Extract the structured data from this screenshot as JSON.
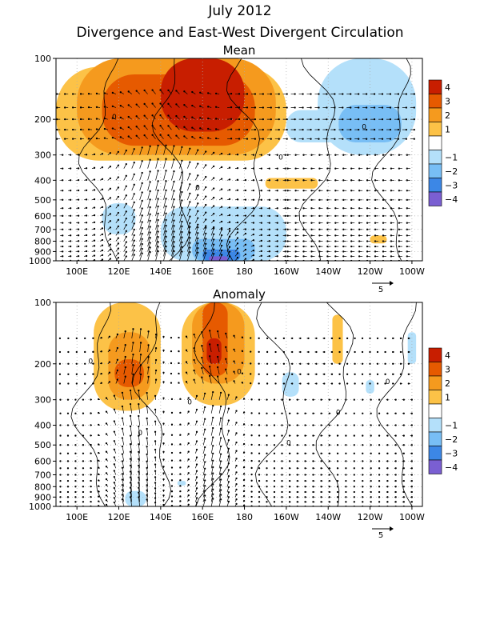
{
  "header": {
    "title": "July 2012",
    "subtitle": "Divergence and East-West Divergent Circulation"
  },
  "colors": {
    "pos4": "#c81e00",
    "pos3": "#e65a00",
    "pos2": "#f59a1e",
    "pos1": "#fcc247",
    "zero": "#ffffff",
    "neg1": "#b4e0fa",
    "neg2": "#78bef5",
    "neg3": "#3c87e6",
    "neg4": "#7a5fd2"
  },
  "chart_data": [
    {
      "type": "heatmap",
      "title": "Mean",
      "x_ticks": [
        "100E",
        "120E",
        "140E",
        "160E",
        "180",
        "160W",
        "140W",
        "120W",
        "100W"
      ],
      "x_lon": [
        100,
        120,
        140,
        160,
        180,
        200,
        220,
        240,
        260
      ],
      "xlim": [
        90,
        265
      ],
      "y_ticks": [
        100,
        200,
        300,
        400,
        500,
        600,
        700,
        800,
        900,
        1000
      ],
      "ylim": [
        1000,
        100
      ],
      "y_scale": "log-pressure",
      "colorbar": {
        "labels": [
          "4",
          "3",
          "2",
          "1",
          "−1",
          "−2",
          "−3",
          "−4"
        ]
      },
      "vector_reference": {
        "label": "5"
      },
      "contour_labels": [
        "0",
        "0",
        "0",
        "0"
      ],
      "regions": [
        {
          "level": 1,
          "lon": [
            90,
            200
          ],
          "p": [
            110,
            320
          ]
        },
        {
          "level": 2,
          "lon": [
            100,
            195
          ],
          "p": [
            100,
            300
          ]
        },
        {
          "level": 3,
          "lon": [
            112,
            185
          ],
          "p": [
            120,
            270
          ]
        },
        {
          "level": 4,
          "lon": [
            140,
            180
          ],
          "p": [
            100,
            230
          ]
        },
        {
          "level": 1,
          "lon": [
            190,
            215
          ],
          "p": [
            390,
            440
          ]
        },
        {
          "level": 1,
          "lon": [
            240,
            248
          ],
          "p": [
            750,
            820
          ]
        },
        {
          "level": -1,
          "lon": [
            200,
            230
          ],
          "p": [
            180,
            260
          ]
        },
        {
          "level": -1,
          "lon": [
            215,
            262
          ],
          "p": [
            100,
            300
          ]
        },
        {
          "level": -2,
          "lon": [
            225,
            255
          ],
          "p": [
            170,
            260
          ]
        },
        {
          "level": -1,
          "lon": [
            112,
            128
          ],
          "p": [
            520,
            740
          ]
        },
        {
          "level": -1,
          "lon": [
            140,
            200
          ],
          "p": [
            540,
            1000
          ]
        },
        {
          "level": -2,
          "lon": [
            155,
            185
          ],
          "p": [
            780,
            1000
          ]
        },
        {
          "level": -3,
          "lon": [
            160,
            178
          ],
          "p": [
            880,
            1000
          ]
        },
        {
          "level": -4,
          "lon": [
            163,
            172
          ],
          "p": [
            950,
            1000
          ]
        }
      ]
    },
    {
      "type": "heatmap",
      "title": "Anomaly",
      "x_ticks": [
        "100E",
        "120E",
        "140E",
        "160E",
        "180",
        "160W",
        "140W",
        "120W",
        "100W"
      ],
      "x_lon": [
        100,
        120,
        140,
        160,
        180,
        200,
        220,
        240,
        260
      ],
      "xlim": [
        90,
        265
      ],
      "y_ticks": [
        100,
        200,
        300,
        400,
        500,
        600,
        700,
        800,
        900,
        1000
      ],
      "ylim": [
        1000,
        100
      ],
      "y_scale": "log-pressure",
      "colorbar": {
        "labels": [
          "4",
          "3",
          "2",
          "1",
          "−1",
          "−2",
          "−3",
          "−4"
        ]
      },
      "vector_reference": {
        "label": "5"
      },
      "contour_labels": [
        "0",
        "0",
        "0",
        "0",
        "0",
        "0",
        "0"
      ],
      "regions": [
        {
          "level": 1,
          "lon": [
            108,
            140
          ],
          "p": [
            100,
            340
          ]
        },
        {
          "level": 2,
          "lon": [
            115,
            135
          ],
          "p": [
            140,
            300
          ]
        },
        {
          "level": 3,
          "lon": [
            118,
            132
          ],
          "p": [
            190,
            260
          ]
        },
        {
          "level": 1,
          "lon": [
            150,
            185
          ],
          "p": [
            100,
            320
          ]
        },
        {
          "level": 2,
          "lon": [
            155,
            180
          ],
          "p": [
            100,
            250
          ]
        },
        {
          "level": 3,
          "lon": [
            160,
            172
          ],
          "p": [
            100,
            230
          ]
        },
        {
          "level": 4,
          "lon": [
            162,
            169
          ],
          "p": [
            150,
            200
          ]
        },
        {
          "level": 1,
          "lon": [
            222,
            227
          ],
          "p": [
            115,
            200
          ]
        },
        {
          "level": -1,
          "lon": [
            198,
            206
          ],
          "p": [
            220,
            290
          ]
        },
        {
          "level": -1,
          "lon": [
            238,
            242
          ],
          "p": [
            240,
            280
          ]
        },
        {
          "level": -1,
          "lon": [
            258,
            262
          ],
          "p": [
            140,
            200
          ]
        },
        {
          "level": -1,
          "lon": [
            123,
            133
          ],
          "p": [
            840,
            1000
          ]
        },
        {
          "level": -1,
          "lon": [
            148,
            152
          ],
          "p": [
            750,
            790
          ]
        }
      ]
    }
  ]
}
